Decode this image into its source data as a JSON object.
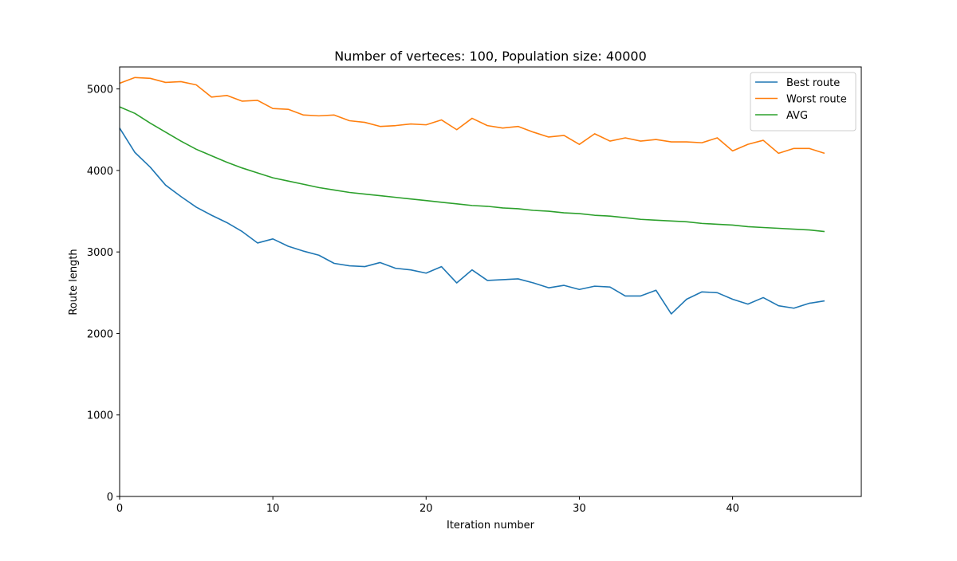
{
  "chart_data": {
    "type": "line",
    "title": "Number of verteces: 100, Population size: 40000",
    "xlabel": "Iteration number",
    "ylabel": "Route length",
    "xlim": [
      0,
      48.4
    ],
    "ylim": [
      0,
      5270
    ],
    "xticks": [
      0,
      10,
      20,
      30,
      40
    ],
    "yticks": [
      0,
      1000,
      2000,
      3000,
      4000,
      5000
    ],
    "grid": false,
    "legend_position": "top-right",
    "x": [
      0,
      1,
      2,
      3,
      4,
      5,
      6,
      7,
      8,
      9,
      10,
      11,
      12,
      13,
      14,
      15,
      16,
      17,
      18,
      19,
      20,
      21,
      22,
      23,
      24,
      25,
      26,
      27,
      28,
      29,
      30,
      31,
      32,
      33,
      34,
      35,
      36,
      37,
      38,
      39,
      40,
      41,
      42,
      43,
      44,
      45,
      46
    ],
    "series": [
      {
        "name": "Best route",
        "color": "#1f77b4",
        "values": [
          4520,
          4220,
          4040,
          3820,
          3680,
          3550,
          3450,
          3360,
          3250,
          3110,
          3160,
          3070,
          3010,
          2960,
          2860,
          2830,
          2820,
          2870,
          2800,
          2780,
          2740,
          2820,
          2620,
          2780,
          2650,
          2660,
          2670,
          2620,
          2560,
          2590,
          2540,
          2580,
          2570,
          2460,
          2460,
          2530,
          2240,
          2420,
          2510,
          2500,
          2420,
          2360,
          2440,
          2340,
          2310,
          2370,
          2400
        ]
      },
      {
        "name": "Worst route",
        "color": "#ff7f0e",
        "values": [
          5070,
          5140,
          5130,
          5080,
          5090,
          5050,
          4900,
          4920,
          4850,
          4860,
          4760,
          4750,
          4680,
          4670,
          4680,
          4610,
          4590,
          4540,
          4550,
          4570,
          4560,
          4620,
          4500,
          4640,
          4550,
          4520,
          4540,
          4470,
          4410,
          4430,
          4320,
          4450,
          4360,
          4400,
          4360,
          4380,
          4350,
          4350,
          4340,
          4400,
          4240,
          4320,
          4370,
          4210,
          4270,
          4270,
          4210
        ]
      },
      {
        "name": "AVG",
        "color": "#2ca02c",
        "values": [
          4780,
          4700,
          4580,
          4470,
          4360,
          4260,
          4180,
          4100,
          4030,
          3970,
          3910,
          3870,
          3830,
          3790,
          3760,
          3730,
          3710,
          3690,
          3670,
          3650,
          3630,
          3610,
          3590,
          3570,
          3560,
          3540,
          3530,
          3510,
          3500,
          3480,
          3470,
          3450,
          3440,
          3420,
          3400,
          3390,
          3380,
          3370,
          3350,
          3340,
          3330,
          3310,
          3300,
          3290,
          3280,
          3270,
          3250
        ]
      }
    ]
  }
}
